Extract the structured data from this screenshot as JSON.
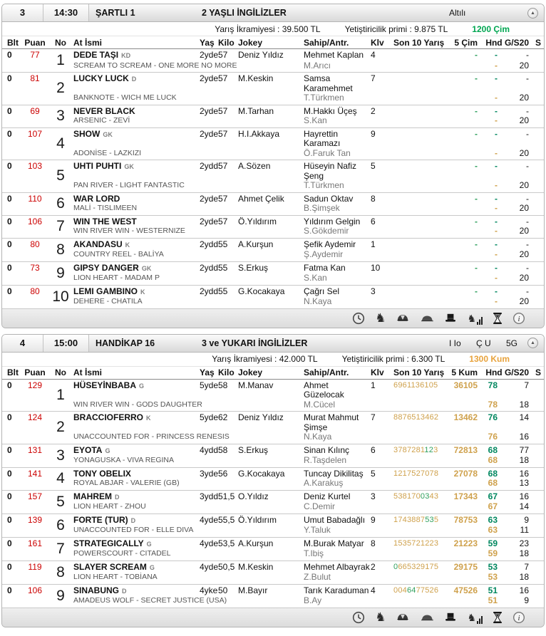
{
  "colors": {
    "puan_red": "#cc0000",
    "kum_digit": "#cfa14c",
    "cim_digit": "#2fa05e",
    "hnd_green": "#00875f",
    "hnd_orange": "#cfa14c",
    "track_cim_green": "#00a651",
    "track_kum_orange": "#e8a33d"
  },
  "footer_icons": [
    "clock-icon",
    "horse-icon",
    "jockey-cap-icon",
    "flat-cap-icon",
    "top-hat-icon",
    "horse-stats-icon",
    "hourglass-icon",
    "info-icon"
  ],
  "races": [
    {
      "no": "3",
      "time": "14:30",
      "name": "ŞARTLI 1",
      "group": "2 YAŞLI İNGİLİZLER",
      "bets": [
        "Altılı"
      ],
      "prize_label": "Yarış İkramiyesi : 39.500 TL",
      "breeder_label": "Yetiştiricilik primi : 9.875 TL",
      "track": "1200 Çim",
      "track_color": "#00a651",
      "columns": [
        "Blt",
        "Puan",
        "No",
        "At İsmi",
        "Yaş",
        "Kilo",
        "Jokey",
        "Sahip/Antr.",
        "Klv",
        "Son 10 Yarış",
        "5 Çim",
        "Hnd G/S20",
        "S"
      ],
      "horses": [
        {
          "blt": "0",
          "puan": "77",
          "no": "1",
          "name": "DEDE TAŞI",
          "badge": "KD",
          "pedigree": "SCREAM TO SCREAM - ONE MORE NO MORE",
          "yas": "2yde",
          "kilo": "57",
          "jokey": "Deniz Yıldız",
          "sahip": "Mehmet Kaplan",
          "antr": "M.Arıcı",
          "klv": "4",
          "son10": [],
          "five": {
            "t": "-",
            "s": "c"
          },
          "hnd_top": "-",
          "hnd_bot": "-",
          "gs_top": "-",
          "gs_bot": "20",
          "s": ""
        },
        {
          "blt": "0",
          "puan": "81",
          "no": "2",
          "name": "LUCKY LUCK",
          "badge": "D",
          "pedigree": "BANKNOTE - WICH ME LUCK",
          "yas": "2yde",
          "kilo": "57",
          "jokey": "M.Keskin",
          "sahip": "Samsa Karamehmet",
          "antr": "T.Türkmen",
          "klv": "7",
          "son10": [],
          "five": {
            "t": "-",
            "s": "c"
          },
          "hnd_top": "-",
          "hnd_bot": "-",
          "gs_top": "-",
          "gs_bot": "20",
          "s": ""
        },
        {
          "blt": "0",
          "puan": "69",
          "no": "3",
          "name": "NEVER BLACK",
          "badge": "",
          "pedigree": "ARSENIC - ZEVİ",
          "yas": "2yde",
          "kilo": "57",
          "jokey": "M.Tarhan",
          "sahip": "M.Hakkı Üçeş",
          "antr": "S.Kan",
          "klv": "2",
          "son10": [],
          "five": {
            "t": "-",
            "s": "c"
          },
          "hnd_top": "-",
          "hnd_bot": "-",
          "gs_top": "-",
          "gs_bot": "20",
          "s": ""
        },
        {
          "blt": "0",
          "puan": "107",
          "no": "4",
          "name": "SHOW",
          "badge": "GK",
          "pedigree": "ADONİSE - LAZKIZI",
          "yas": "2yde",
          "kilo": "57",
          "jokey": "H.I.Akkaya",
          "sahip": "Hayrettin Karamazı",
          "antr": "Ö.Faruk Tan",
          "klv": "9",
          "son10": [],
          "five": {
            "t": "-",
            "s": "c"
          },
          "hnd_top": "-",
          "hnd_bot": "-",
          "gs_top": "-",
          "gs_bot": "20",
          "s": ""
        },
        {
          "blt": "0",
          "puan": "103",
          "no": "5",
          "name": "UHTI PUHTI",
          "badge": "GK",
          "pedigree": "PAN RIVER - LIGHT FANTASTIC",
          "yas": "2ydd",
          "kilo": "57",
          "jokey": "A.Sözen",
          "sahip": "Hüseyin Nafiz Şeng",
          "antr": "T.Türkmen",
          "klv": "5",
          "son10": [],
          "five": {
            "t": "-",
            "s": "c"
          },
          "hnd_top": "-",
          "hnd_bot": "-",
          "gs_top": "-",
          "gs_bot": "20",
          "s": ""
        },
        {
          "blt": "0",
          "puan": "110",
          "no": "6",
          "name": "WAR LORD",
          "badge": "",
          "pedigree": "MALİ - TISLIMEEN",
          "yas": "2yde",
          "kilo": "57",
          "jokey": "Ahmet Çelik",
          "sahip": "Sadun Oktav",
          "antr": "B.Şimşek",
          "klv": "8",
          "son10": [],
          "five": {
            "t": "-",
            "s": "c"
          },
          "hnd_top": "-",
          "hnd_bot": "-",
          "gs_top": "-",
          "gs_bot": "20",
          "s": ""
        },
        {
          "blt": "0",
          "puan": "106",
          "no": "7",
          "name": "WIN THE WEST",
          "badge": "",
          "pedigree": "WIN RIVER WIN - WESTERNIZE",
          "yas": "2yde",
          "kilo": "57",
          "jokey": "Ö.Yıldırım",
          "sahip": "Yıldırım Gelgin",
          "antr": "S.Gökdemir",
          "klv": "6",
          "son10": [],
          "five": {
            "t": "-",
            "s": "c"
          },
          "hnd_top": "-",
          "hnd_bot": "-",
          "gs_top": "-",
          "gs_bot": "20",
          "s": ""
        },
        {
          "blt": "0",
          "puan": "80",
          "no": "8",
          "name": "AKANDASU",
          "badge": "K",
          "pedigree": "COUNTRY REEL - BALİYA",
          "yas": "2ydd",
          "kilo": "55",
          "jokey": "A.Kurşun",
          "sahip": "Şefik Aydemir",
          "antr": "Ş.Aydemir",
          "klv": "1",
          "son10": [],
          "five": {
            "t": "-",
            "s": "c"
          },
          "hnd_top": "-",
          "hnd_bot": "-",
          "gs_top": "-",
          "gs_bot": "20",
          "s": ""
        },
        {
          "blt": "0",
          "puan": "73",
          "no": "9",
          "name": "GIPSY DANGER",
          "badge": "GK",
          "pedigree": "LION HEART - MADAM P",
          "yas": "2ydd",
          "kilo": "55",
          "jokey": "S.Erkuş",
          "sahip": "Fatma Kan",
          "antr": "S.Kan",
          "klv": "10",
          "son10": [],
          "five": {
            "t": "-",
            "s": "c"
          },
          "hnd_top": "-",
          "hnd_bot": "-",
          "gs_top": "-",
          "gs_bot": "20",
          "s": ""
        },
        {
          "blt": "0",
          "puan": "80",
          "no": "10",
          "name": "LEMI GAMBINO",
          "badge": "K",
          "pedigree": "DEHERE - CHATILA",
          "yas": "2ydd",
          "kilo": "55",
          "jokey": "G.Kocakaya",
          "sahip": "Çağrı Sel",
          "antr": "N.Kaya",
          "klv": "3",
          "son10": [],
          "five": {
            "t": "-",
            "s": "c"
          },
          "hnd_top": "-",
          "hnd_bot": "-",
          "gs_top": "-",
          "gs_bot": "20",
          "s": ""
        }
      ]
    },
    {
      "no": "4",
      "time": "15:00",
      "name": "HANDİKAP 16",
      "group": "3 ve YUKARI İNGİLİZLER",
      "bets": [
        "I Io",
        "Ç U",
        "5G"
      ],
      "prize_label": "Yarış İkramiyesi : 42.000 TL",
      "breeder_label": "Yetiştiricilik primi : 6.300 TL",
      "track": "1300 Kum",
      "track_color": "#e8a33d",
      "columns": [
        "Blt",
        "Puan",
        "No",
        "At İsmi",
        "Yaş",
        "Kilo",
        "Jokey",
        "Sahip/Antr.",
        "Klv",
        "Son 10 Yarış",
        "5 Kum",
        "Hnd G/S20",
        "S"
      ],
      "horses": [
        {
          "blt": "0",
          "puan": "129",
          "no": "1",
          "name": "HÜSEYİNBABA",
          "badge": "G",
          "pedigree": "WIN RIVER WIN - GODS DAUGHTER",
          "yas": "5yde",
          "kilo": "58",
          "jokey": "M.Manav",
          "sahip": "Ahmet Güzelocak",
          "antr": "M.Cücel",
          "klv": "1",
          "son10": [
            {
              "t": "6961136105",
              "s": "k"
            }
          ],
          "five": {
            "t": "36105",
            "s": "k"
          },
          "hnd_top": "78",
          "hnd_bot": "78",
          "gs_top": "7",
          "gs_bot": "18",
          "s": ""
        },
        {
          "blt": "0",
          "puan": "124",
          "no": "2",
          "name": "BRACCIOFERRO",
          "badge": "K",
          "pedigree": "UNACCOUNTED FOR - PRINCESS RENESIS",
          "yas": "5yde",
          "kilo": "62",
          "jokey": "Deniz Yıldız",
          "sahip": "Murat Mahmut Şimşe",
          "antr": "N.Kaya",
          "klv": "7",
          "son10": [
            {
              "t": "8876513462",
              "s": "k"
            }
          ],
          "five": {
            "t": "13462",
            "s": "k"
          },
          "hnd_top": "76",
          "hnd_bot": "76",
          "gs_top": "14",
          "gs_bot": "16",
          "s": ""
        },
        {
          "blt": "0",
          "puan": "131",
          "no": "3",
          "name": "EYOTA",
          "badge": "G",
          "pedigree": "YONAGUSKA - VIVA REGINA",
          "yas": "4ydd",
          "kilo": "58",
          "jokey": "S.Erkuş",
          "sahip": "Sinan Kılınç",
          "antr": "R.Taşdelen",
          "klv": "6",
          "son10": [
            {
              "t": "3787281",
              "s": "k"
            },
            {
              "t": "12",
              "s": "c"
            },
            {
              "t": "3",
              "s": "k"
            }
          ],
          "five": {
            "t": "72813",
            "s": "k"
          },
          "hnd_top": "68",
          "hnd_bot": "68",
          "gs_top": "77",
          "gs_bot": "18",
          "s": ""
        },
        {
          "blt": "0",
          "puan": "141",
          "no": "4",
          "name": "TONY OBELIX",
          "badge": "",
          "pedigree": "ROYAL ABJAR - VALERIE (GB)",
          "yas": "3yde",
          "kilo": "56",
          "jokey": "G.Kocakaya",
          "sahip": "Tuncay Dikilitaş",
          "antr": "A.Karakuş",
          "klv": "5",
          "son10": [
            {
              "t": "1217527078",
              "s": "k"
            }
          ],
          "five": {
            "t": "27078",
            "s": "k"
          },
          "hnd_top": "68",
          "hnd_bot": "68",
          "gs_top": "16",
          "gs_bot": "13",
          "s": ""
        },
        {
          "blt": "0",
          "puan": "157",
          "no": "5",
          "name": "MAHREM",
          "badge": "D",
          "pedigree": "LION HEART - ZHOU",
          "yas": "3ydd",
          "kilo": "51,5",
          "jokey": "O.Yıldız",
          "sahip": "Deniz Kurtel",
          "antr": "C.Demir",
          "klv": "3",
          "son10": [
            {
              "t": "538170",
              "s": "k"
            },
            {
              "t": "03",
              "s": "c"
            },
            {
              "t": "43",
              "s": "k"
            }
          ],
          "five": {
            "t": "17343",
            "s": "k"
          },
          "hnd_top": "67",
          "hnd_bot": "67",
          "gs_top": "16",
          "gs_bot": "14",
          "s": ""
        },
        {
          "blt": "0",
          "puan": "139",
          "no": "6",
          "name": "FORTE (TUR)",
          "badge": "D",
          "pedigree": "UNACCOUNTED FOR - ELLE DIVA",
          "yas": "4yde",
          "kilo": "55,5",
          "jokey": "Ö.Yıldırım",
          "sahip": "Umut Babadağlı",
          "antr": "Y.Taluk",
          "klv": "9",
          "son10": [
            {
              "t": "1743887",
              "s": "k"
            },
            {
              "t": "53",
              "s": "c"
            },
            {
              "t": "5",
              "s": "k"
            }
          ],
          "five": {
            "t": "78753",
            "s": "k"
          },
          "hnd_top": "63",
          "hnd_bot": "63",
          "gs_top": "9",
          "gs_bot": "11",
          "s": ""
        },
        {
          "blt": "0",
          "puan": "161",
          "no": "7",
          "name": "STRATEGICALLY",
          "badge": "G",
          "pedigree": "POWERSCOURT - CITADEL",
          "yas": "4yde",
          "kilo": "53,5",
          "jokey": "A.Kurşun",
          "sahip": "M.Burak Matyar",
          "antr": "T.Ibiş",
          "klv": "8",
          "son10": [
            {
              "t": "1535721223",
              "s": "k"
            }
          ],
          "five": {
            "t": "21223",
            "s": "k"
          },
          "hnd_top": "59",
          "hnd_bot": "59",
          "gs_top": "23",
          "gs_bot": "18",
          "s": ""
        },
        {
          "blt": "0",
          "puan": "119",
          "no": "8",
          "name": "SLAYER SCREAM",
          "badge": "G",
          "pedigree": "LION HEART - TOBİANA",
          "yas": "4yde",
          "kilo": "50,5",
          "jokey": "M.Keskin",
          "sahip": "Mehmet Albayrak",
          "antr": "Z.Bulut",
          "klv": "2",
          "son10": [
            {
              "t": "0",
              "s": "c"
            },
            {
              "t": "665329175",
              "s": "k"
            }
          ],
          "five": {
            "t": "29175",
            "s": "k"
          },
          "hnd_top": "53",
          "hnd_bot": "53",
          "gs_top": "7",
          "gs_bot": "18",
          "s": ""
        },
        {
          "blt": "0",
          "puan": "106",
          "no": "9",
          "name": "SINABUNG",
          "badge": "D",
          "pedigree": "AMADEUS WOLF - SECRET JUSTICE (USA)",
          "yas": "4yke",
          "kilo": "50",
          "jokey": "M.Bayır",
          "sahip": "Tarık Karaduman",
          "antr": "B.Ay",
          "klv": "4",
          "son10": [
            {
              "t": "004",
              "s": "k"
            },
            {
              "t": "64",
              "s": "c"
            },
            {
              "t": "77526",
              "s": "k"
            }
          ],
          "five": {
            "t": "47526",
            "s": "k"
          },
          "hnd_top": "51",
          "hnd_bot": "51",
          "gs_top": "16",
          "gs_bot": "9",
          "s": ""
        }
      ]
    }
  ]
}
